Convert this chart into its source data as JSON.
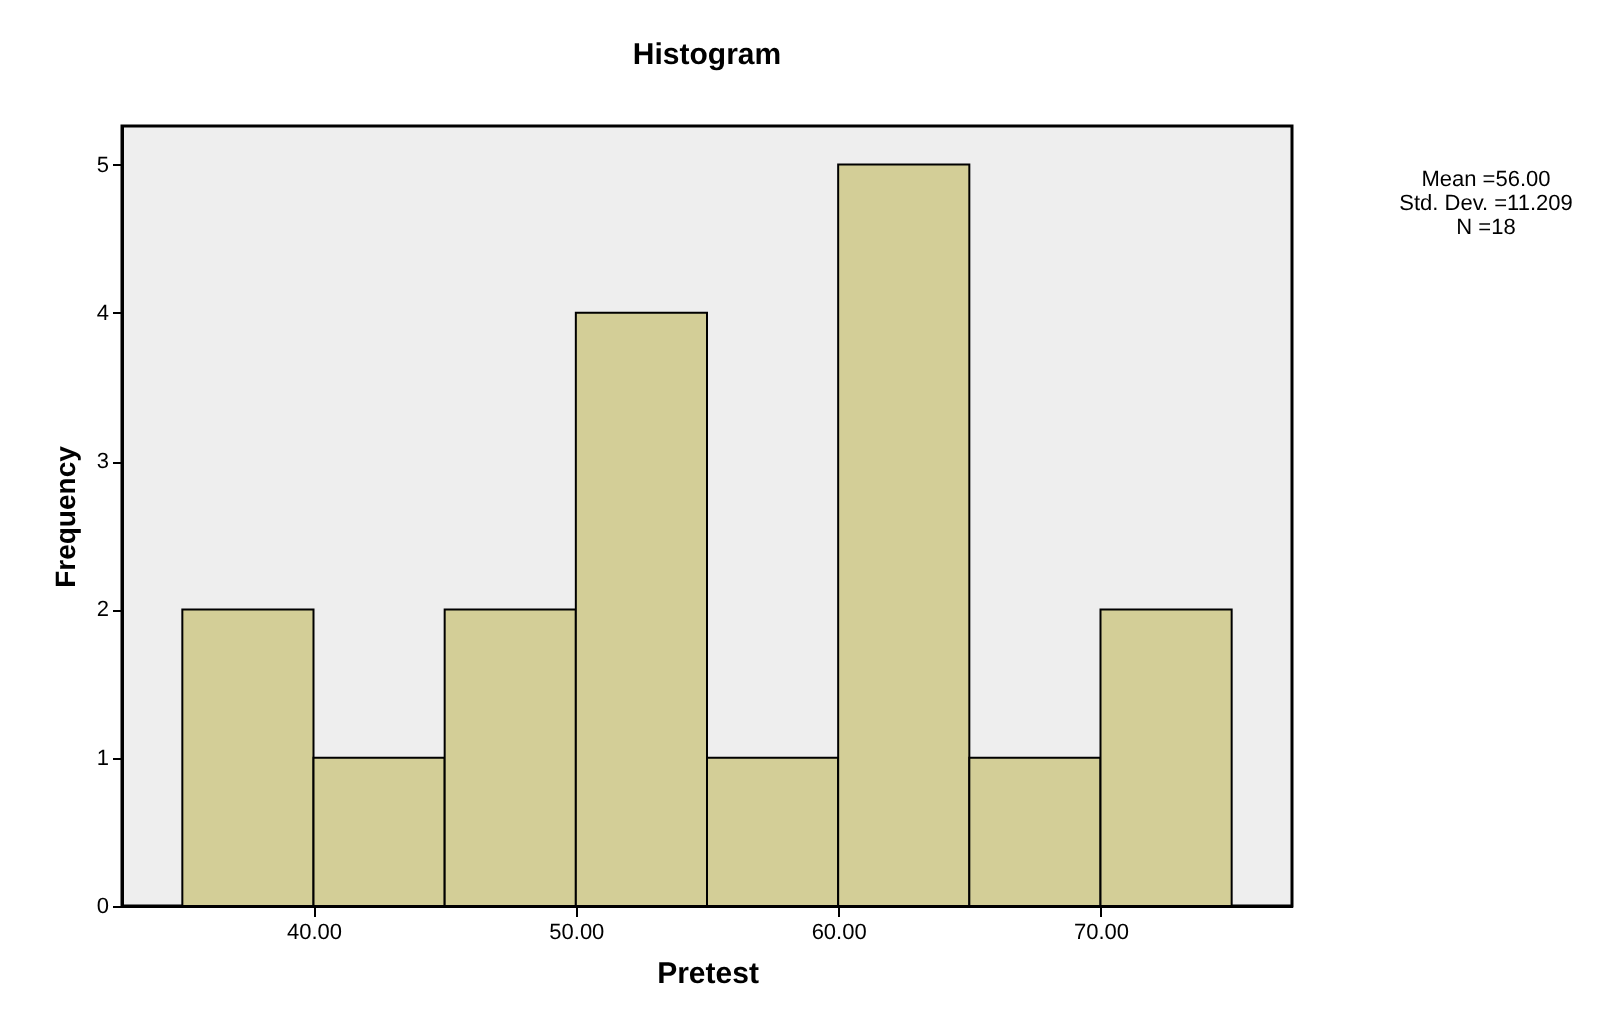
{
  "chart_data": {
    "type": "histogram",
    "title": "Histogram",
    "xlabel": "Pretest",
    "ylabel": "Frequency",
    "bins": [
      35,
      40,
      45,
      50,
      55,
      60,
      65,
      70,
      75
    ],
    "values": [
      2,
      1,
      2,
      4,
      1,
      5,
      1,
      2
    ],
    "color": "#d3ce97",
    "xlim": [
      32.7,
      77.3
    ],
    "xticks": [
      {
        "value": 40,
        "label": "40.00"
      },
      {
        "value": 50,
        "label": "50.00"
      },
      {
        "value": 60,
        "label": "60.00"
      },
      {
        "value": 70,
        "label": "70.00"
      }
    ],
    "ylim": [
      0,
      5.26
    ],
    "yticks": [
      0,
      1,
      2,
      3,
      4,
      5
    ],
    "annotations": [
      "Mean =56.00",
      "Std. Dev. =11.209",
      "N =18"
    ]
  }
}
